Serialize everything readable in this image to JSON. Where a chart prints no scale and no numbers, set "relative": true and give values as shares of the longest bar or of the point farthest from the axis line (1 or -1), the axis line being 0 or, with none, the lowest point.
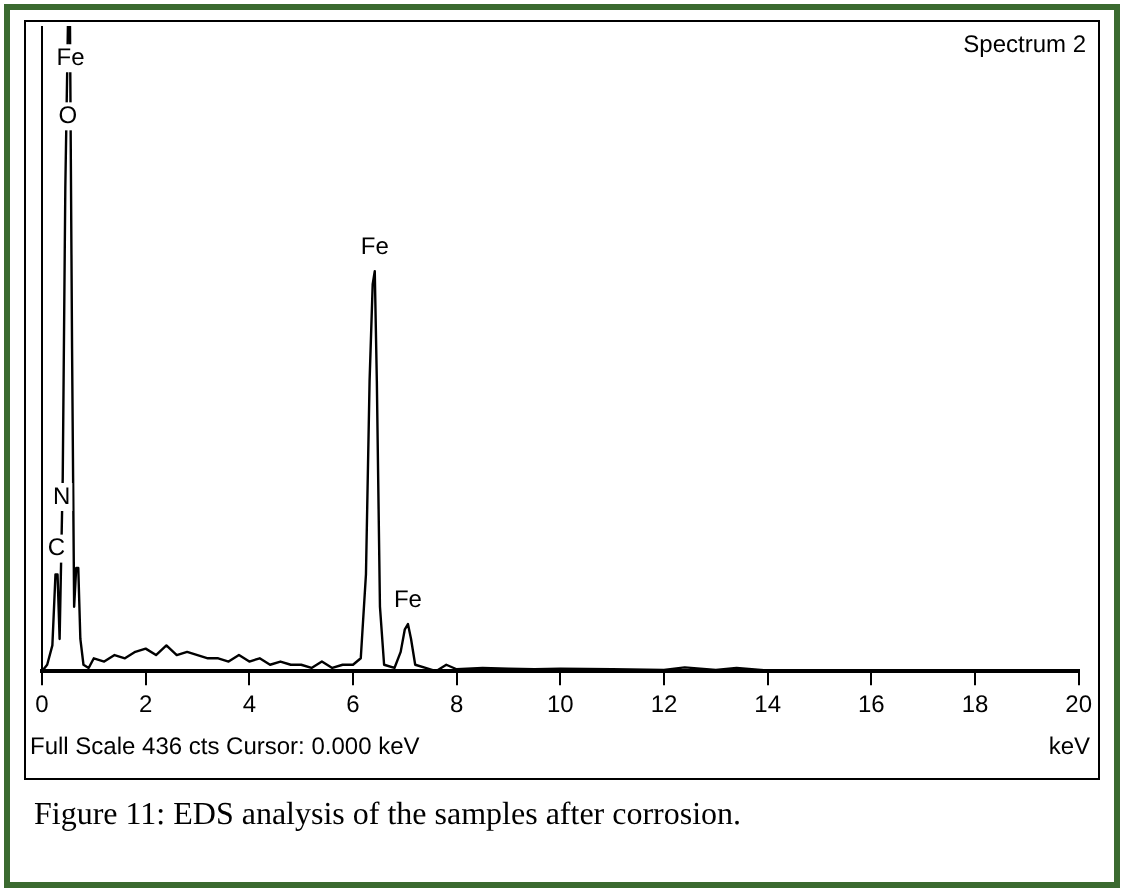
{
  "chart_data": {
    "type": "line",
    "relative": true,
    "xlabel": "keV",
    "color": "#000000",
    "marker": "none",
    "line_style": "solid",
    "grid": false,
    "legend": false,
    "xlim": [
      0,
      20
    ],
    "xticks": [
      0,
      2,
      4,
      6,
      8,
      10,
      12,
      14,
      16,
      18,
      20
    ],
    "x": [
      0,
      0.1,
      0.2,
      0.26,
      0.3,
      0.34,
      0.4,
      0.45,
      0.5,
      0.54,
      0.58,
      0.62,
      0.66,
      0.7,
      0.74,
      0.8,
      0.9,
      1.0,
      1.2,
      1.4,
      1.6,
      1.8,
      2.0,
      2.2,
      2.4,
      2.6,
      2.8,
      3.0,
      3.2,
      3.4,
      3.6,
      3.8,
      4.0,
      4.2,
      4.4,
      4.6,
      4.8,
      5.0,
      5.2,
      5.4,
      5.6,
      5.8,
      6.0,
      6.15,
      6.25,
      6.32,
      6.38,
      6.42,
      6.46,
      6.52,
      6.6,
      6.8,
      6.92,
      7.0,
      7.06,
      7.12,
      7.2,
      7.4,
      7.6,
      7.8,
      8.0,
      8.5,
      9,
      9.5,
      10,
      11,
      12,
      12.4,
      13,
      13.4,
      14,
      16,
      18,
      20
    ],
    "values": [
      0,
      0.01,
      0.04,
      0.15,
      0.15,
      0.05,
      0.3,
      0.75,
      1,
      1,
      0.5,
      0.1,
      0.16,
      0.16,
      0.05,
      0.01,
      0.005,
      0.02,
      0.015,
      0.025,
      0.02,
      0.03,
      0.035,
      0.025,
      0.04,
      0.025,
      0.03,
      0.025,
      0.02,
      0.02,
      0.015,
      0.025,
      0.015,
      0.02,
      0.01,
      0.015,
      0.01,
      0.01,
      0.005,
      0.015,
      0.005,
      0.01,
      0.01,
      0.02,
      0.15,
      0.45,
      0.6,
      0.62,
      0.45,
      0.1,
      0.01,
      0.005,
      0.03,
      0.065,
      0.073,
      0.05,
      0.01,
      0.005,
      0,
      0.01,
      0.003,
      0.005,
      0.004,
      0.003,
      0.004,
      0.003,
      0.002,
      0.006,
      0.002,
      0.005,
      0.001,
      0.001,
      0.001,
      0.001
    ],
    "ref_lines": [
      {
        "axis": "x",
        "value": 0,
        "color": "#000000"
      }
    ],
    "annotations": [
      {
        "text": "Fe",
        "x": 0.55,
        "y": 0.95
      },
      {
        "text": "O",
        "x": 0.5,
        "y": 0.86
      },
      {
        "text": "N",
        "x": 0.38,
        "y": 0.27
      },
      {
        "text": "C",
        "x": 0.28,
        "y": 0.19
      },
      {
        "text": "Fe",
        "x": 6.42,
        "y": 0.62
      },
      {
        "text": "Fe",
        "x": 7.06,
        "y": 0.073
      },
      "Spectrum 2",
      "Full Scale 436 cts  Cursor: 0.000 keV",
      "Figure 11: EDS analysis of the samples after corrosion."
    ]
  }
}
